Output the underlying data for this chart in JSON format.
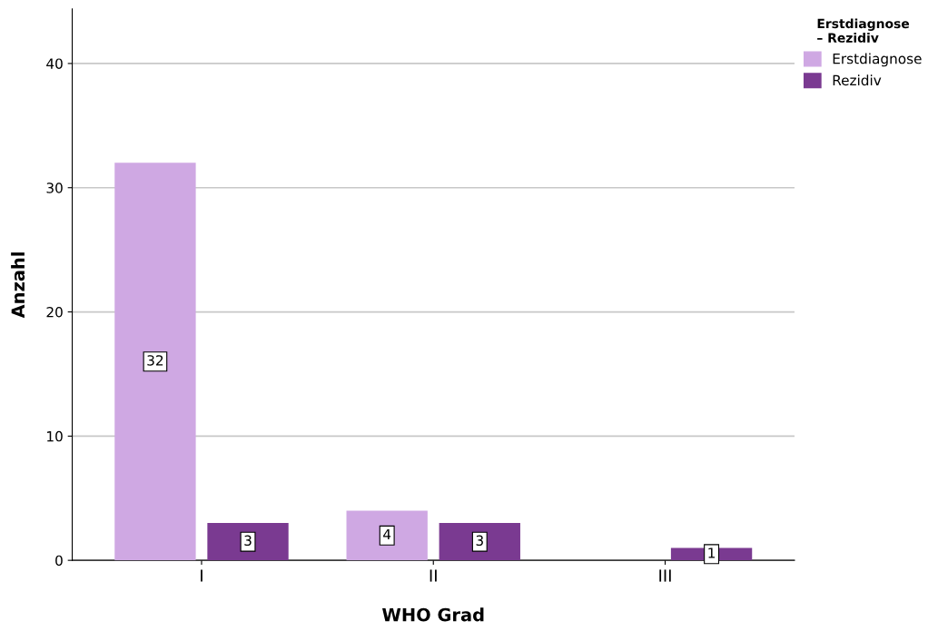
{
  "chart_data": {
    "type": "bar",
    "xlabel": "WHO Grad",
    "ylabel": "Anzahl",
    "legend_title": "Erstdiagnose\n– Rezidiv",
    "categories": [
      "I",
      "II",
      "III"
    ],
    "series": [
      {
        "name": "Erstdiagnose",
        "color": "#cfa8e3",
        "values": [
          32,
          4,
          null
        ]
      },
      {
        "name": "Rezidiv",
        "color": "#7a3a91",
        "values": [
          3,
          3,
          1
        ]
      }
    ],
    "ylim": [
      0,
      44.4
    ],
    "yticks": [
      0,
      10,
      20,
      30,
      40
    ],
    "grid": "y",
    "legend": "top right",
    "data_labels": true
  }
}
